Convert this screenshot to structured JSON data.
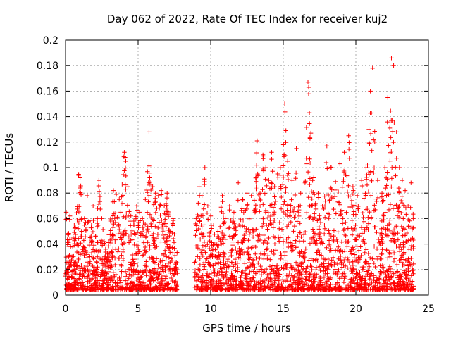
{
  "chart_data": {
    "type": "scatter",
    "title": "Day 062 of 2022, Rate Of TEC Index for receiver kuj2",
    "xlabel": "GPS time / hours",
    "ylabel": "ROTI / TECUs",
    "xlim": [
      0,
      25
    ],
    "ylim": [
      0,
      0.2
    ],
    "xticks": [
      "0",
      "5",
      "10",
      "15",
      "20",
      "25"
    ],
    "yticks": [
      "0",
      "0.02",
      "0.04",
      "0.06",
      "0.08",
      "0.1",
      "0.12",
      "0.14",
      "0.16",
      "0.18",
      "0.2"
    ],
    "grid": true,
    "legend": "none",
    "marker": "plus",
    "color": "#ff0000",
    "data_gap_hours": [
      7.7,
      8.9
    ],
    "points": [
      [
        0.05,
        0.065
      ],
      [
        0.15,
        0.048
      ],
      [
        0.3,
        0.062
      ],
      [
        0.45,
        0.03
      ],
      [
        0.6,
        0.055
      ],
      [
        0.8,
        0.04
      ],
      [
        0.9,
        0.094
      ],
      [
        1.0,
        0.092
      ],
      [
        1.1,
        0.05
      ],
      [
        1.3,
        0.06
      ],
      [
        1.5,
        0.078
      ],
      [
        1.7,
        0.045
      ],
      [
        1.9,
        0.07
      ],
      [
        2.1,
        0.035
      ],
      [
        2.3,
        0.09
      ],
      [
        2.5,
        0.06
      ],
      [
        2.7,
        0.04
      ],
      [
        2.9,
        0.03
      ],
      [
        3.1,
        0.058
      ],
      [
        3.3,
        0.082
      ],
      [
        3.5,
        0.079
      ],
      [
        3.7,
        0.075
      ],
      [
        3.9,
        0.087
      ],
      [
        4.05,
        0.112
      ],
      [
        4.1,
        0.108
      ],
      [
        4.15,
        0.105
      ],
      [
        4.3,
        0.085
      ],
      [
        4.5,
        0.062
      ],
      [
        4.7,
        0.055
      ],
      [
        4.9,
        0.07
      ],
      [
        5.1,
        0.065
      ],
      [
        5.3,
        0.06
      ],
      [
        5.5,
        0.075
      ],
      [
        5.75,
        0.128
      ],
      [
        5.8,
        0.092
      ],
      [
        6.0,
        0.085
      ],
      [
        6.2,
        0.08
      ],
      [
        6.4,
        0.078
      ],
      [
        6.6,
        0.082
      ],
      [
        6.8,
        0.07
      ],
      [
        7.0,
        0.08
      ],
      [
        7.2,
        0.05
      ],
      [
        7.4,
        0.06
      ],
      [
        7.5,
        0.02
      ],
      [
        9.0,
        0.06
      ],
      [
        9.2,
        0.085
      ],
      [
        9.4,
        0.078
      ],
      [
        9.6,
        0.1
      ],
      [
        9.8,
        0.07
      ],
      [
        10.0,
        0.062
      ],
      [
        10.2,
        0.055
      ],
      [
        10.5,
        0.05
      ],
      [
        10.8,
        0.078
      ],
      [
        11.0,
        0.06
      ],
      [
        11.3,
        0.07
      ],
      [
        11.6,
        0.065
      ],
      [
        11.9,
        0.088
      ],
      [
        12.2,
        0.075
      ],
      [
        12.5,
        0.08
      ],
      [
        12.8,
        0.078
      ],
      [
        13.2,
        0.121
      ],
      [
        13.4,
        0.08
      ],
      [
        13.6,
        0.11
      ],
      [
        13.8,
        0.1
      ],
      [
        14.0,
        0.09
      ],
      [
        14.2,
        0.112
      ],
      [
        14.4,
        0.085
      ],
      [
        14.6,
        0.095
      ],
      [
        14.8,
        0.1
      ],
      [
        15.0,
        0.118
      ],
      [
        15.1,
        0.15
      ],
      [
        15.3,
        0.105
      ],
      [
        15.6,
        0.09
      ],
      [
        15.9,
        0.115
      ],
      [
        16.2,
        0.08
      ],
      [
        16.5,
        0.088
      ],
      [
        16.7,
        0.167
      ],
      [
        16.75,
        0.163
      ],
      [
        16.8,
        0.143
      ],
      [
        16.9,
        0.127
      ],
      [
        17.1,
        0.092
      ],
      [
        17.4,
        0.08
      ],
      [
        17.7,
        0.07
      ],
      [
        18.0,
        0.117
      ],
      [
        18.3,
        0.1
      ],
      [
        18.6,
        0.089
      ],
      [
        18.9,
        0.103
      ],
      [
        19.2,
        0.112
      ],
      [
        19.5,
        0.125
      ],
      [
        19.8,
        0.085
      ],
      [
        20.1,
        0.078
      ],
      [
        20.4,
        0.09
      ],
      [
        20.7,
        0.1
      ],
      [
        20.9,
        0.13
      ],
      [
        21.0,
        0.16
      ],
      [
        21.15,
        0.178
      ],
      [
        21.3,
        0.12
      ],
      [
        21.5,
        0.09
      ],
      [
        21.8,
        0.08
      ],
      [
        22.0,
        0.1
      ],
      [
        22.2,
        0.155
      ],
      [
        22.45,
        0.186
      ],
      [
        22.6,
        0.18
      ],
      [
        22.8,
        0.128
      ],
      [
        23.0,
        0.1
      ],
      [
        23.2,
        0.09
      ],
      [
        23.4,
        0.082
      ],
      [
        23.6,
        0.07
      ],
      [
        23.8,
        0.088
      ],
      [
        23.95,
        0.06
      ]
    ]
  }
}
